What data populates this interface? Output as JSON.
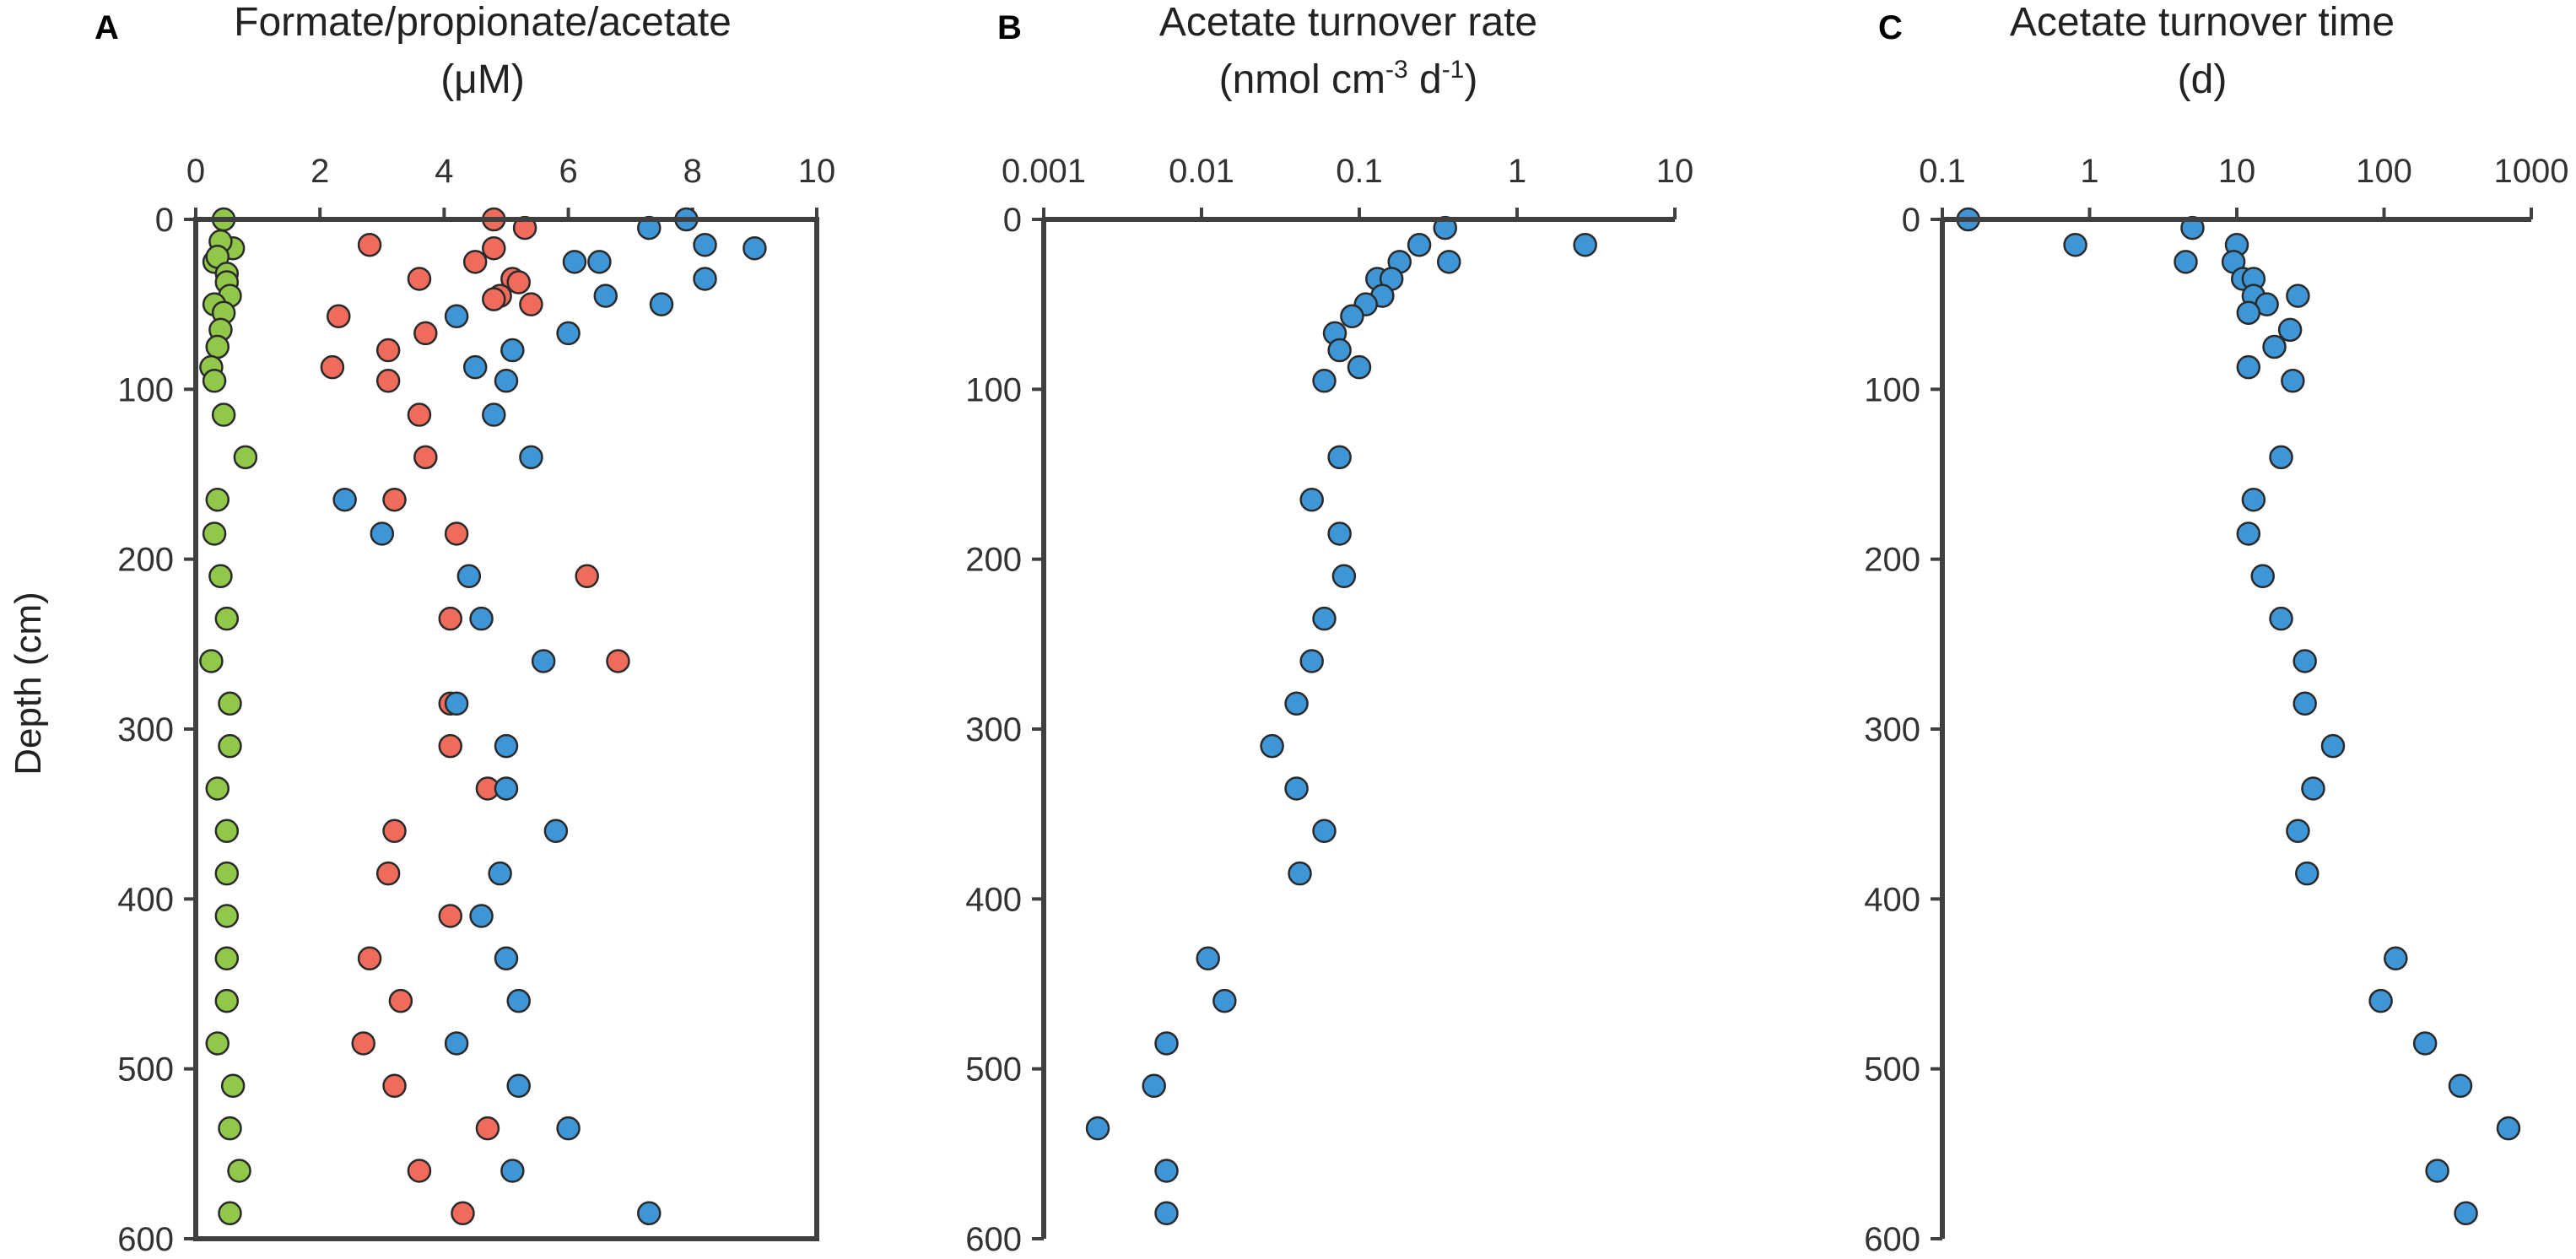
{
  "colors": {
    "formate": "#92c84a",
    "propionate": "#ef6b5c",
    "acetate": "#3e96d6",
    "outline": "#2a2a2a",
    "axis": "#404040"
  },
  "ylabel": "Depth (cm)",
  "chart_data": [
    {
      "panel": "A",
      "type": "scatter",
      "title": "Formate/propionate/acetate",
      "units": "(μM)",
      "xscale": "linear",
      "xlim": [
        0,
        10
      ],
      "xticks": [
        0,
        2,
        4,
        6,
        8,
        10
      ],
      "xtick_labels": [
        "0",
        "2",
        "4",
        "6",
        "8",
        "10"
      ],
      "ylim": [
        0,
        600
      ],
      "yticks": [
        0,
        100,
        200,
        300,
        400,
        500,
        600
      ],
      "ytick_labels": [
        "0",
        "100",
        "200",
        "300",
        "400",
        "500",
        "600"
      ],
      "ylabel": "Depth (cm)",
      "series": [
        {
          "name": "Formate",
          "color_key": "formate",
          "points": [
            [
              0.45,
              0
            ],
            [
              0.6,
              17
            ],
            [
              0.4,
              13
            ],
            [
              0.3,
              25
            ],
            [
              0.35,
              22
            ],
            [
              0.5,
              32
            ],
            [
              0.5,
              37
            ],
            [
              0.55,
              45
            ],
            [
              0.3,
              50
            ],
            [
              0.45,
              55
            ],
            [
              0.4,
              65
            ],
            [
              0.35,
              75
            ],
            [
              0.25,
              87
            ],
            [
              0.3,
              95
            ],
            [
              0.45,
              115
            ],
            [
              0.8,
              140
            ],
            [
              0.35,
              165
            ],
            [
              0.3,
              185
            ],
            [
              0.4,
              210
            ],
            [
              0.5,
              235
            ],
            [
              0.25,
              260
            ],
            [
              0.55,
              285
            ],
            [
              0.55,
              310
            ],
            [
              0.35,
              335
            ],
            [
              0.5,
              360
            ],
            [
              0.5,
              385
            ],
            [
              0.5,
              410
            ],
            [
              0.5,
              435
            ],
            [
              0.5,
              460
            ],
            [
              0.35,
              485
            ],
            [
              0.6,
              510
            ],
            [
              0.55,
              535
            ],
            [
              0.7,
              560
            ],
            [
              0.55,
              585
            ]
          ]
        },
        {
          "name": "Propionate",
          "color_key": "propionate",
          "points": [
            [
              4.8,
              0
            ],
            [
              5.3,
              5
            ],
            [
              2.8,
              15
            ],
            [
              4.8,
              17
            ],
            [
              4.5,
              25
            ],
            [
              3.6,
              35
            ],
            [
              5.1,
              35
            ],
            [
              5.2,
              37
            ],
            [
              4.9,
              45
            ],
            [
              4.8,
              47
            ],
            [
              5.4,
              50
            ],
            [
              2.3,
              57
            ],
            [
              3.7,
              67
            ],
            [
              3.1,
              77
            ],
            [
              2.2,
              87
            ],
            [
              3.1,
              95
            ],
            [
              3.6,
              115
            ],
            [
              3.7,
              140
            ],
            [
              3.2,
              165
            ],
            [
              4.2,
              185
            ],
            [
              6.3,
              210
            ],
            [
              4.1,
              235
            ],
            [
              6.8,
              260
            ],
            [
              4.1,
              285
            ],
            [
              4.1,
              310
            ],
            [
              4.7,
              335
            ],
            [
              3.2,
              360
            ],
            [
              3.1,
              385
            ],
            [
              4.1,
              410
            ],
            [
              2.8,
              435
            ],
            [
              3.3,
              460
            ],
            [
              2.7,
              485
            ],
            [
              3.2,
              510
            ],
            [
              4.7,
              535
            ],
            [
              3.6,
              560
            ],
            [
              4.3,
              585
            ]
          ]
        },
        {
          "name": "Acetate",
          "color_key": "acetate",
          "points": [
            [
              7.9,
              0
            ],
            [
              7.3,
              5
            ],
            [
              8.2,
              15
            ],
            [
              9.0,
              17
            ],
            [
              6.1,
              25
            ],
            [
              6.5,
              25
            ],
            [
              8.2,
              35
            ],
            [
              6.6,
              45
            ],
            [
              7.5,
              50
            ],
            [
              4.2,
              57
            ],
            [
              6.0,
              67
            ],
            [
              5.1,
              77
            ],
            [
              4.5,
              87
            ],
            [
              5.0,
              95
            ],
            [
              4.8,
              115
            ],
            [
              5.4,
              140
            ],
            [
              2.4,
              165
            ],
            [
              3.0,
              185
            ],
            [
              4.4,
              210
            ],
            [
              4.6,
              235
            ],
            [
              5.6,
              260
            ],
            [
              4.2,
              285
            ],
            [
              5.0,
              310
            ],
            [
              5.0,
              335
            ],
            [
              5.8,
              360
            ],
            [
              4.9,
              385
            ],
            [
              4.6,
              410
            ],
            [
              5.0,
              435
            ],
            [
              5.2,
              460
            ],
            [
              4.2,
              485
            ],
            [
              5.2,
              510
            ],
            [
              6.0,
              535
            ],
            [
              5.1,
              560
            ],
            [
              7.3,
              585
            ]
          ]
        }
      ]
    },
    {
      "panel": "B",
      "type": "scatter",
      "title": "Acetate turnover rate",
      "units_parts": [
        "(nmol cm",
        "-3",
        " d",
        "-1",
        ")"
      ],
      "xscale": "log",
      "xlim": [
        0.001,
        10
      ],
      "xticks": [
        0.001,
        0.01,
        0.1,
        1,
        10
      ],
      "xtick_labels": [
        "0.001",
        "0.01",
        "0.1",
        "1",
        "10"
      ],
      "ylim": [
        0,
        600
      ],
      "yticks": [
        0,
        100,
        200,
        300,
        400,
        500,
        600
      ],
      "ytick_labels": [
        "0",
        "100",
        "200",
        "300",
        "400",
        "500",
        "600"
      ],
      "series": [
        {
          "name": "Acetate turnover rate",
          "color_key": "acetate",
          "points": [
            [
              0.35,
              5
            ],
            [
              2.7,
              15
            ],
            [
              0.24,
              15
            ],
            [
              0.37,
              25
            ],
            [
              0.18,
              25
            ],
            [
              0.13,
              35
            ],
            [
              0.16,
              35
            ],
            [
              0.14,
              45
            ],
            [
              0.11,
              50
            ],
            [
              0.09,
              57
            ],
            [
              0.07,
              67
            ],
            [
              0.075,
              77
            ],
            [
              0.1,
              87
            ],
            [
              0.06,
              95
            ],
            [
              0.075,
              140
            ],
            [
              0.05,
              165
            ],
            [
              0.075,
              185
            ],
            [
              0.08,
              210
            ],
            [
              0.06,
              235
            ],
            [
              0.05,
              260
            ],
            [
              0.04,
              285
            ],
            [
              0.028,
              310
            ],
            [
              0.04,
              335
            ],
            [
              0.06,
              360
            ],
            [
              0.042,
              385
            ],
            [
              0.011,
              435
            ],
            [
              0.014,
              460
            ],
            [
              0.006,
              485
            ],
            [
              0.005,
              510
            ],
            [
              0.0022,
              535
            ],
            [
              0.006,
              560
            ],
            [
              0.006,
              585
            ]
          ]
        }
      ]
    },
    {
      "panel": "C",
      "type": "scatter",
      "title": "Acetate turnover time",
      "units": "(d)",
      "xscale": "log",
      "xlim": [
        0.1,
        1000
      ],
      "xticks": [
        0.1,
        1,
        10,
        100,
        1000
      ],
      "xtick_labels": [
        "0.1",
        "1",
        "10",
        "100",
        "1000"
      ],
      "ylim": [
        0,
        600
      ],
      "yticks": [
        0,
        100,
        200,
        300,
        400,
        500,
        600
      ],
      "ytick_labels": [
        "0",
        "100",
        "200",
        "300",
        "400",
        "500",
        "600"
      ],
      "series": [
        {
          "name": "Acetate turnover time",
          "color_key": "acetate",
          "points": [
            [
              0.15,
              0
            ],
            [
              5,
              5
            ],
            [
              0.8,
              15
            ],
            [
              10,
              15
            ],
            [
              4.5,
              25
            ],
            [
              9.5,
              25
            ],
            [
              11,
              35
            ],
            [
              13,
              35
            ],
            [
              13,
              45
            ],
            [
              26,
              45
            ],
            [
              16,
              50
            ],
            [
              12,
              55
            ],
            [
              23,
              65
            ],
            [
              18,
              75
            ],
            [
              12,
              87
            ],
            [
              24,
              95
            ],
            [
              20,
              140
            ],
            [
              13,
              165
            ],
            [
              12,
              185
            ],
            [
              15,
              210
            ],
            [
              20,
              235
            ],
            [
              29,
              260
            ],
            [
              29,
              285
            ],
            [
              45,
              310
            ],
            [
              33,
              335
            ],
            [
              26,
              360
            ],
            [
              30,
              385
            ],
            [
              120,
              435
            ],
            [
              95,
              460
            ],
            [
              190,
              485
            ],
            [
              330,
              510
            ],
            [
              700,
              535
            ],
            [
              230,
              560
            ],
            [
              360,
              585
            ]
          ]
        }
      ]
    }
  ]
}
